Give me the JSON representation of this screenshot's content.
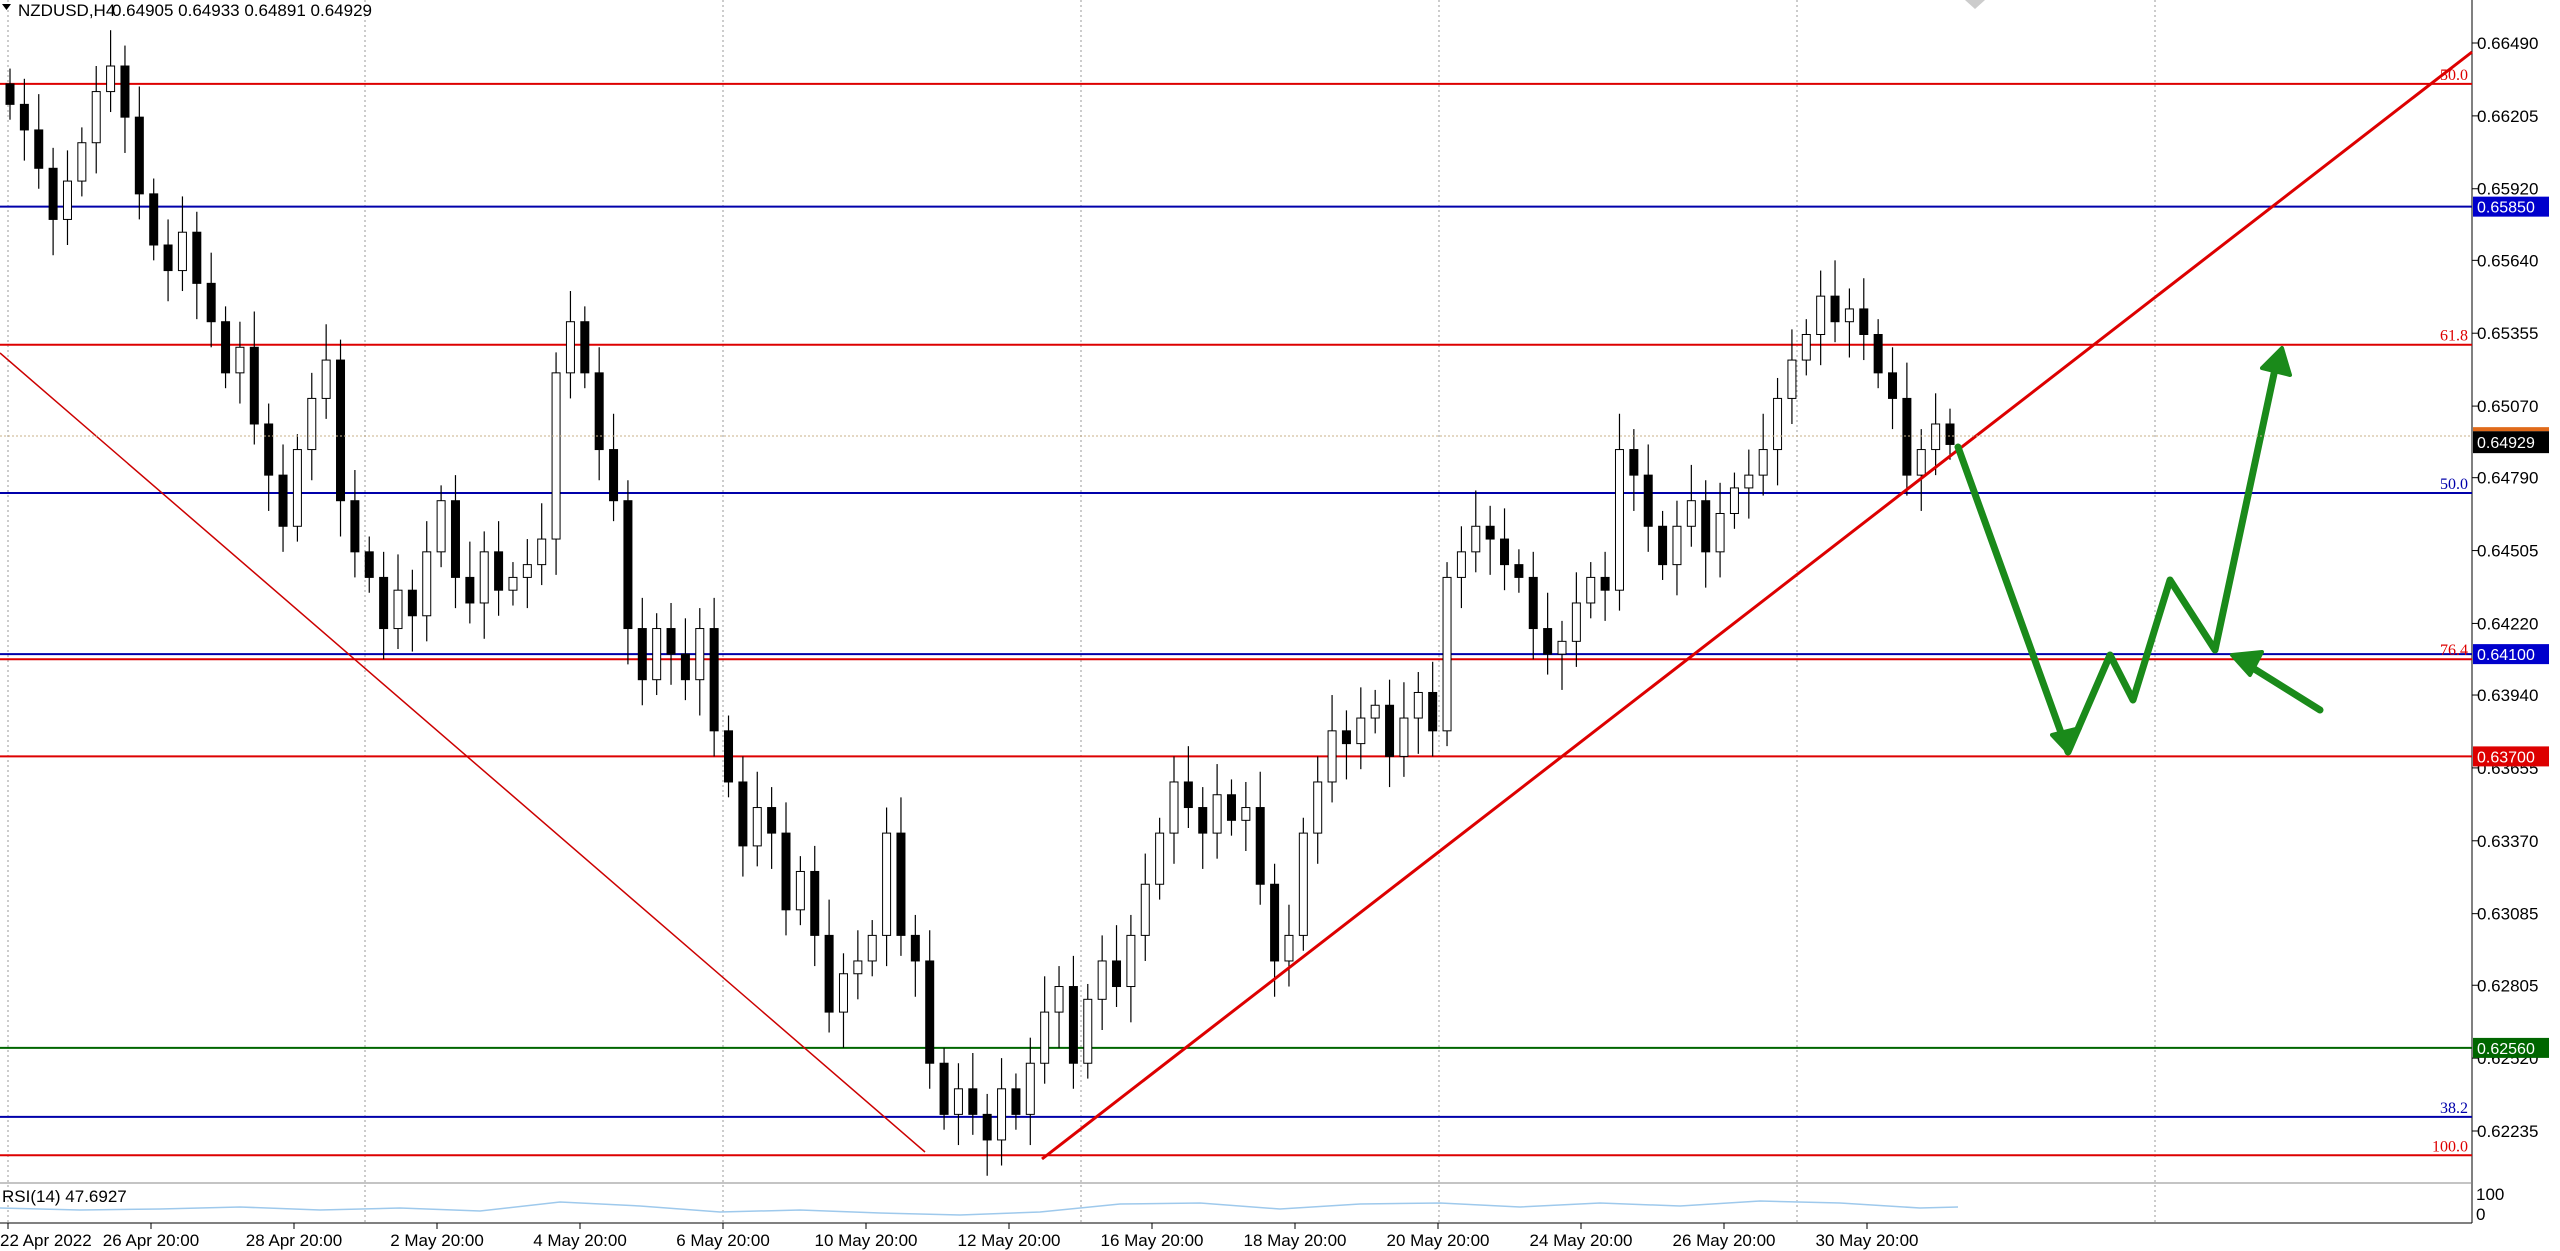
{
  "header": {
    "symbol_title": "NZDUSD,H4",
    "ohlc": "0.64905 0.64933 0.64891 0.64929"
  },
  "chart_data": {
    "type": "candlestick",
    "symbol": "NZDUSD",
    "timeframe": "H4",
    "ylim": [
      0.6203,
      0.6666
    ],
    "y_ticks": [
      "0.66490",
      "0.66205",
      "0.65920",
      "0.65640",
      "0.65355",
      "0.65070",
      "0.64790",
      "0.64505",
      "0.64220",
      "0.63940",
      "0.63655",
      "0.63370",
      "0.63085",
      "0.62805",
      "0.62520",
      "0.62235"
    ],
    "x_ticks": [
      "22 Apr 2022",
      "26 Apr 20:00",
      "28 Apr 20:00",
      "2 May 20:00",
      "4 May 20:00",
      "6 May 20:00",
      "10 May 20:00",
      "12 May 20:00",
      "16 May 20:00",
      "18 May 20:00",
      "20 May 20:00",
      "24 May 20:00",
      "26 May 20:00",
      "30 May 20:00"
    ],
    "grid": true,
    "grid_line_count": 6,
    "current_price": "0.64929",
    "series_close": [
      0.6625,
      0.6615,
      0.66,
      0.658,
      0.6595,
      0.661,
      0.663,
      0.664,
      0.662,
      0.659,
      0.657,
      0.656,
      0.6575,
      0.6555,
      0.654,
      0.652,
      0.653,
      0.65,
      0.648,
      0.646,
      0.649,
      0.651,
      0.6525,
      0.647,
      0.645,
      0.644,
      0.642,
      0.6435,
      0.6425,
      0.645,
      0.647,
      0.644,
      0.643,
      0.645,
      0.6435,
      0.644,
      0.6445,
      0.6455,
      0.652,
      0.654,
      0.652,
      0.649,
      0.647,
      0.642,
      0.64,
      0.642,
      0.641,
      0.64,
      0.642,
      0.638,
      0.636,
      0.6335,
      0.635,
      0.634,
      0.631,
      0.6325,
      0.63,
      0.627,
      0.6285,
      0.629,
      0.63,
      0.634,
      0.63,
      0.629,
      0.625,
      0.623,
      0.624,
      0.623,
      0.622,
      0.624,
      0.623,
      0.625,
      0.627,
      0.628,
      0.625,
      0.6275,
      0.629,
      0.628,
      0.63,
      0.632,
      0.634,
      0.636,
      0.635,
      0.634,
      0.6355,
      0.6345,
      0.635,
      0.632,
      0.629,
      0.63,
      0.634,
      0.636,
      0.638,
      0.6375,
      0.6385,
      0.639,
      0.637,
      0.6385,
      0.6395,
      0.638,
      0.644,
      0.645,
      0.646,
      0.6455,
      0.6445,
      0.644,
      0.642,
      0.641,
      0.6415,
      0.643,
      0.644,
      0.6435,
      0.649,
      0.648,
      0.646,
      0.6445,
      0.646,
      0.647,
      0.645,
      0.6465,
      0.6475,
      0.648,
      0.649,
      0.651,
      0.6525,
      0.6535,
      0.655,
      0.654,
      0.6545,
      0.6535,
      0.652,
      0.651,
      0.648,
      0.649,
      0.65,
      0.6492
    ],
    "levels": [
      {
        "price": 0.6633,
        "color": "#dd0000",
        "label": "50.0"
      },
      {
        "price": 0.6585,
        "color": "#0000aa",
        "box": "0.65850",
        "box_color": "#0000cc"
      },
      {
        "price": 0.6531,
        "color": "#dd0000",
        "label": "61.8"
      },
      {
        "price": 0.6473,
        "color": "#0000aa",
        "label": "50.0"
      },
      {
        "price": 0.641,
        "color": "#0000aa",
        "box": "0.64100",
        "box_color": "#0000cc"
      },
      {
        "price": 0.6408,
        "color": "#dd0000",
        "label": "76.4"
      },
      {
        "price": 0.637,
        "color": "#dd0000",
        "box": "0.63700",
        "box_color": "#dd0000"
      },
      {
        "price": 0.6256,
        "color": "#006600",
        "box": "0.62560",
        "box_color": "#006600"
      },
      {
        "price": 0.6229,
        "color": "#0000aa",
        "label": "38.2"
      },
      {
        "price": 0.6214,
        "color": "#dd0000",
        "label": "100.0"
      }
    ],
    "current_price_box_color": "#000000",
    "indicator": {
      "label": "RSI(14) 47.6927",
      "scale": [
        "100",
        "0"
      ]
    },
    "annotation": "forecast path drawn with green arrows"
  }
}
